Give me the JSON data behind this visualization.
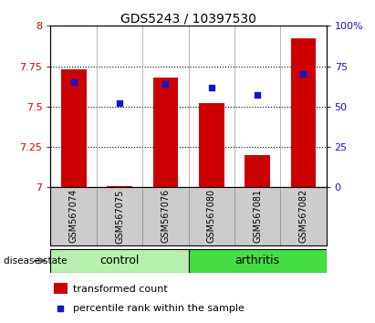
{
  "title": "GDS5243 / 10397530",
  "samples": [
    "GSM567074",
    "GSM567075",
    "GSM567076",
    "GSM567080",
    "GSM567081",
    "GSM567082"
  ],
  "bar_values": [
    7.73,
    7.01,
    7.68,
    7.52,
    7.2,
    7.92
  ],
  "dot_values": [
    65,
    52,
    64,
    62,
    57,
    70
  ],
  "bar_bottom": 7.0,
  "ylim_left": [
    7.0,
    8.0
  ],
  "ylim_right": [
    0,
    100
  ],
  "yticks_left": [
    7.0,
    7.25,
    7.5,
    7.75,
    8.0
  ],
  "ytick_labels_left": [
    "7",
    "7.25",
    "7.5",
    "7.75",
    "8"
  ],
  "yticks_right": [
    0,
    25,
    50,
    75,
    100
  ],
  "ytick_labels_right": [
    "0",
    "25",
    "50",
    "75",
    "100%"
  ],
  "grid_yticks": [
    7.25,
    7.5,
    7.75
  ],
  "bar_color": "#cc0000",
  "dot_color": "#1414cc",
  "bar_width": 0.55,
  "control_color": "#b8f0b0",
  "arthritis_color": "#44dd44",
  "control_label": "control",
  "arthritis_label": "arthritis",
  "disease_state_label": "disease state",
  "legend_bar_label": "transformed count",
  "legend_dot_label": "percentile rank within the sample",
  "tick_color_left": "#cc0000",
  "tick_color_right": "#1414cc",
  "sample_bg_color": "#cccccc",
  "n_control": 3,
  "n_arthritis": 3
}
